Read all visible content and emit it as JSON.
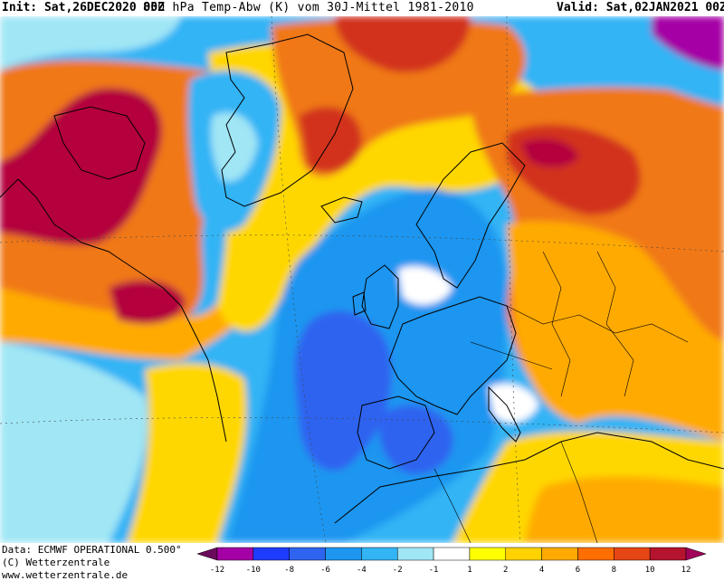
{
  "header": {
    "init": "Init: Sat,26DEC2020 00Z",
    "title": "850 hPa Temp-Abw (K) vom 30J-Mittel 1981-2010",
    "valid": "Valid: Sat,02JAN2021 00Z"
  },
  "footer": {
    "data_source": "Data: ECMWF OPERATIONAL 0.500°",
    "copyright": "(C) Wetterzentrale",
    "website": "www.wetterzentrale.de"
  },
  "legend": {
    "colors": [
      "#6a0a5a",
      "#a500a5",
      "#1e3cff",
      "#2e64f0",
      "#1e96f0",
      "#32b4f5",
      "#a0e6f5",
      "#ffffff",
      "#ffff00",
      "#ffd200",
      "#ffaa00",
      "#ff6e00",
      "#e64614",
      "#b4142d",
      "#a0005a"
    ],
    "labels": [
      "-12",
      "-10",
      "-8",
      "-6",
      "-4",
      "-2",
      "-1",
      "1",
      "2",
      "4",
      "6",
      "8",
      "10",
      "12"
    ]
  },
  "anomaly_palette": {
    "deep_warm": "#b4003c",
    "warm_red": "#d2321e",
    "orange": "#f07814",
    "light_orange": "#ffaa00",
    "yellow": "#ffd700",
    "near_zero": "#ffffff",
    "light_blue": "#a0e6f5",
    "cyan": "#32b4f5",
    "blue": "#1e96f0",
    "mid_blue": "#2e64f0",
    "deep_cold": "#a500a5"
  }
}
